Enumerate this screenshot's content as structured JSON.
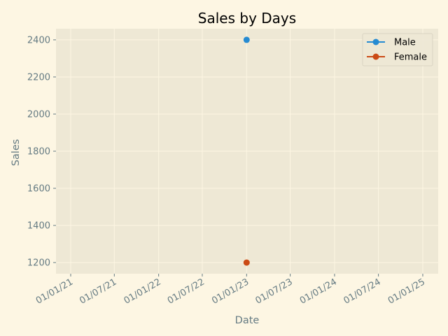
{
  "chart_data": {
    "type": "line",
    "title": "Sales by Days",
    "xlabel": "Date",
    "ylabel": "Sales",
    "x_ticks": [
      "01/01/21",
      "01/07/21",
      "01/01/22",
      "01/07/22",
      "01/01/23",
      "01/07/23",
      "01/01/24",
      "01/07/24",
      "01/01/25"
    ],
    "y_ticks": [
      1200,
      1400,
      1600,
      1800,
      2000,
      2200,
      2400
    ],
    "ylim": [
      1140,
      2460
    ],
    "xlim": [
      "2020-11-01",
      "2025-03-06"
    ],
    "grid": true,
    "legend_position": "top-right",
    "series": [
      {
        "name": "Male",
        "color": "#268bd2",
        "points": [
          {
            "x": "2023-01-01",
            "y": 2400
          }
        ]
      },
      {
        "name": "Female",
        "color": "#cb4b16",
        "points": [
          {
            "x": "2023-01-01",
            "y": 1200
          }
        ]
      }
    ],
    "colors": {
      "figure_background": "#fdf6e3",
      "plot_background": "#eee8d5",
      "grid": "#fdf6e3",
      "text": "#657b83"
    }
  }
}
